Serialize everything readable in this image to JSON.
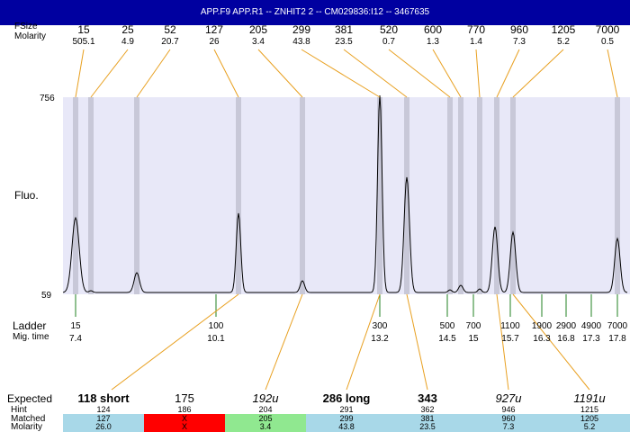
{
  "window": {
    "title": "APP.F9  APP.R1 -- ZNHIT2 2 -- CM029836:I12 -- 3467635"
  },
  "labels": {
    "fsize": "FSize",
    "molarity": "Molarity",
    "fluo": "Fluo.",
    "ladder": "Ladder",
    "migtime": "Mig. time",
    "expected": "Expected",
    "hint": "Hint",
    "matched": "Matched",
    "molarity_bottom": "Molarity",
    "ymax": "756",
    "ymin": "59"
  },
  "colors": {
    "titlebar": "#0000a0",
    "plot_bg": "#e8e8f8",
    "band": "#c8c8d8",
    "peak_line": "#e8a020",
    "ladder_tick": "#208020",
    "matched_ok": "#a8d8e8",
    "matched_fail": "#ff0000",
    "matched_partial": "#90e890"
  },
  "top_peaks": [
    {
      "size": "15",
      "molarity": "505.1"
    },
    {
      "size": "25",
      "molarity": "4.9"
    },
    {
      "size": "52",
      "molarity": "20.7"
    },
    {
      "size": "127",
      "molarity": "26"
    },
    {
      "size": "205",
      "molarity": "3.4"
    },
    {
      "size": "299",
      "molarity": "43.8"
    },
    {
      "size": "381",
      "molarity": "23.5"
    },
    {
      "size": "520",
      "molarity": "0.7"
    },
    {
      "size": "600",
      "molarity": "1.3"
    },
    {
      "size": "770",
      "molarity": "1.4"
    },
    {
      "size": "960",
      "molarity": "7.3"
    },
    {
      "size": "1205",
      "molarity": "5.2"
    },
    {
      "size": "7000",
      "molarity": "0.5"
    }
  ],
  "ladder": [
    {
      "size": "15",
      "time": "7.4"
    },
    {
      "size": "100",
      "time": "10.1"
    },
    {
      "size": "300",
      "time": "13.2"
    },
    {
      "size": "500",
      "time": "14.5"
    },
    {
      "size": "700",
      "time": "15"
    },
    {
      "size": "1100",
      "time": "15.7"
    },
    {
      "size": "1900",
      "time": "16.3"
    },
    {
      "size": "2900",
      "time": "16.8"
    },
    {
      "size": "4900",
      "time": "17.3"
    },
    {
      "size": "7000",
      "time": "17.8"
    }
  ],
  "expected": [
    {
      "label": "118 short",
      "style": "bold",
      "hint": "124",
      "matched": "127",
      "molarity": "26.0",
      "status": "ok"
    },
    {
      "label": "175",
      "style": "normal",
      "hint": "186",
      "matched": "X",
      "molarity": "X",
      "status": "fail"
    },
    {
      "label": "192u",
      "style": "italic",
      "hint": "204",
      "matched": "205",
      "molarity": "3.4",
      "status": "partial"
    },
    {
      "label": "286 long",
      "style": "bold",
      "hint": "291",
      "matched": "299",
      "molarity": "43.8",
      "status": "ok"
    },
    {
      "label": "343",
      "style": "bold",
      "hint": "362",
      "matched": "381",
      "molarity": "23.5",
      "status": "ok"
    },
    {
      "label": "927u",
      "style": "italic",
      "hint": "946",
      "matched": "960",
      "molarity": "7.3",
      "status": "ok"
    },
    {
      "label": "1191u",
      "style": "italic",
      "hint": "1215",
      "matched": "1205",
      "molarity": "5.2",
      "status": "ok"
    }
  ]
}
